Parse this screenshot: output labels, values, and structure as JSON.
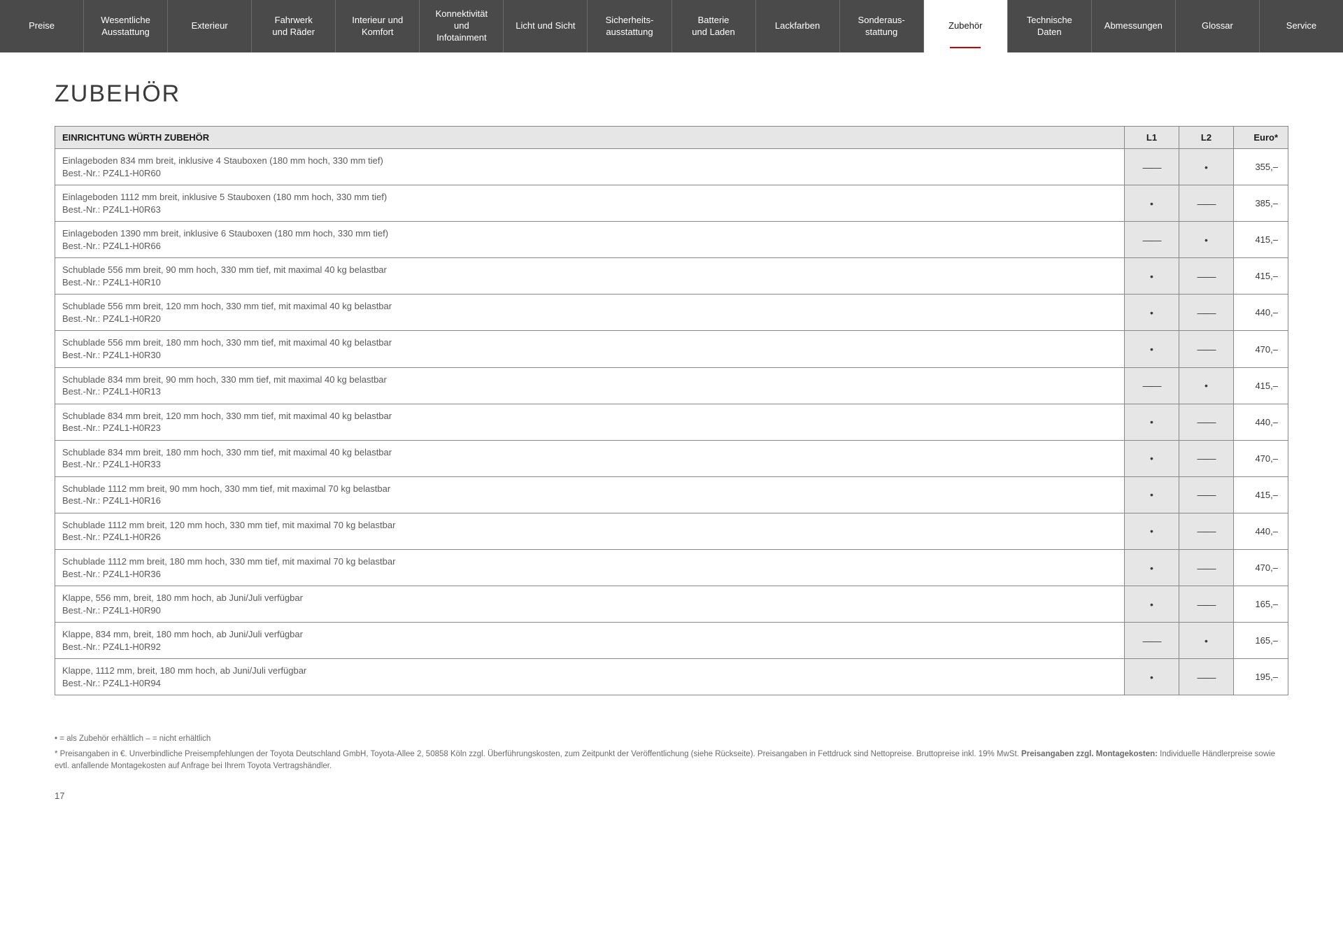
{
  "nav": {
    "items": [
      {
        "label": "Preise"
      },
      {
        "label": "Wesentliche Ausstattung"
      },
      {
        "label": "Exterieur"
      },
      {
        "label": "Fahrwerk und Räder"
      },
      {
        "label": "Interieur und Komfort"
      },
      {
        "label": "Konnektivität und Infotainment"
      },
      {
        "label": "Licht und Sicht"
      },
      {
        "label": "Sicherheits-ausstattung"
      },
      {
        "label": "Batterie und Laden"
      },
      {
        "label": "Lackfarben"
      },
      {
        "label": "Sonderaus-stattung"
      },
      {
        "label": "Zubehör"
      },
      {
        "label": "Technische Daten"
      },
      {
        "label": "Abmessungen"
      },
      {
        "label": "Glossar"
      },
      {
        "label": "Service"
      }
    ],
    "active_index": 11
  },
  "page": {
    "title": "ZUBEHÖR",
    "number": "17"
  },
  "table": {
    "header": {
      "title": "EINRICHTUNG WÜRTH ZUBEHÖR",
      "col_l1": "L1",
      "col_l2": "L2",
      "col_price": "Euro*"
    },
    "marks": {
      "dot": "•",
      "dash": "——"
    },
    "rows": [
      {
        "line1": "Einlageboden 834 mm breit, inklusive 4 Stauboxen (180 mm hoch, 330 mm tief)",
        "line2": "Best.-Nr.: PZ4L1-H0R60",
        "l1": "dash",
        "l2": "dot",
        "price": "355,–"
      },
      {
        "line1": "Einlageboden 1112 mm breit, inklusive 5 Stauboxen (180 mm hoch, 330 mm tief)",
        "line2": "Best.-Nr.: PZ4L1-H0R63",
        "l1": "dot",
        "l2": "dash",
        "price": "385,–"
      },
      {
        "line1": "Einlageboden 1390 mm breit, inklusive 6 Stauboxen (180 mm hoch, 330 mm tief)",
        "line2": "Best.-Nr.: PZ4L1-H0R66",
        "l1": "dash",
        "l2": "dot",
        "price": "415,–"
      },
      {
        "line1": "Schublade 556 mm breit, 90 mm hoch, 330 mm tief, mit maximal 40 kg belastbar",
        "line2": "Best.-Nr.: PZ4L1-H0R10",
        "l1": "dot",
        "l2": "dash",
        "price": "415,–"
      },
      {
        "line1": "Schublade 556 mm breit, 120 mm hoch, 330 mm tief, mit maximal 40 kg belastbar",
        "line2": "Best.-Nr.: PZ4L1-H0R20",
        "l1": "dot",
        "l2": "dash",
        "price": "440,–"
      },
      {
        "line1": "Schublade 556 mm breit, 180 mm hoch, 330 mm tief, mit maximal 40 kg belastbar",
        "line2": "Best.-Nr.: PZ4L1-H0R30",
        "l1": "dot",
        "l2": "dash",
        "price": "470,–"
      },
      {
        "line1": "Schublade 834 mm breit, 90 mm hoch, 330 mm tief, mit maximal 40 kg belastbar",
        "line2": "Best.-Nr.: PZ4L1-H0R13",
        "l1": "dash",
        "l2": "dot",
        "price": "415,–"
      },
      {
        "line1": "Schublade 834 mm breit, 120 mm hoch, 330 mm tief, mit maximal 40 kg belastbar",
        "line2": "Best.-Nr.: PZ4L1-H0R23",
        "l1": "dot",
        "l2": "dash",
        "price": "440,–"
      },
      {
        "line1": "Schublade 834 mm breit, 180 mm hoch, 330 mm tief, mit maximal 40 kg belastbar",
        "line2": "Best.-Nr.: PZ4L1-H0R33",
        "l1": "dot",
        "l2": "dash",
        "price": "470,–"
      },
      {
        "line1": "Schublade 1112 mm breit, 90 mm hoch, 330 mm tief, mit maximal 70 kg belastbar",
        "line2": "Best.-Nr.: PZ4L1-H0R16",
        "l1": "dot",
        "l2": "dash",
        "price": "415,–"
      },
      {
        "line1": "Schublade 1112 mm breit, 120 mm hoch, 330 mm tief, mit maximal 70 kg belastbar",
        "line2": "Best.-Nr.: PZ4L1-H0R26",
        "l1": "dot",
        "l2": "dash",
        "price": "440,–"
      },
      {
        "line1": "Schublade 1112 mm breit, 180 mm hoch, 330 mm tief, mit maximal 70 kg belastbar",
        "line2": "Best.-Nr.: PZ4L1-H0R36",
        "l1": "dot",
        "l2": "dash",
        "price": "470,–"
      },
      {
        "line1": "Klappe, 556 mm, breit, 180 mm hoch, ab Juni/Juli verfügbar",
        "line2": "Best.-Nr.: PZ4L1-H0R90",
        "l1": "dot",
        "l2": "dash",
        "price": "165,–"
      },
      {
        "line1": "Klappe, 834 mm, breit, 180 mm hoch, ab Juni/Juli verfügbar",
        "line2": "Best.-Nr.: PZ4L1-H0R92",
        "l1": "dash",
        "l2": "dot",
        "price": "165,–"
      },
      {
        "line1": "Klappe, 1112 mm, breit, 180 mm hoch, ab Juni/Juli verfügbar",
        "line2": "Best.-Nr.: PZ4L1-H0R94",
        "l1": "dot",
        "l2": "dash",
        "price": "195,–"
      }
    ]
  },
  "footnotes": {
    "legend": "• = als Zubehör erhältlich    – = nicht erhältlich",
    "price_note_prefix": "* Preisangaben in €. Unverbindliche Preisempfehlungen der Toyota Deutschland GmbH, Toyota-Allee 2, 50858 Köln zzgl. Überführungskosten, zum Zeitpunkt der Veröffentlichung (siehe Rückseite). Preisangaben in Fettdruck sind Nettopreise. Bruttopreise inkl. 19% MwSt. ",
    "price_note_bold": "Preisangaben zzgl. Montagekosten:",
    "price_note_suffix": " Individuelle Händlerpreise sowie evtl. anfallende Montagekosten auf Anfrage bei Ihrem Toyota Vertragshändler."
  },
  "colors": {
    "nav_bg": "#4a4a4a",
    "nav_border": "#6a6a6a",
    "accent": "#c00",
    "header_bg": "#e6e6e6",
    "border": "#888888",
    "text": "#3a3a3a",
    "text_muted": "#5a5a5a"
  }
}
